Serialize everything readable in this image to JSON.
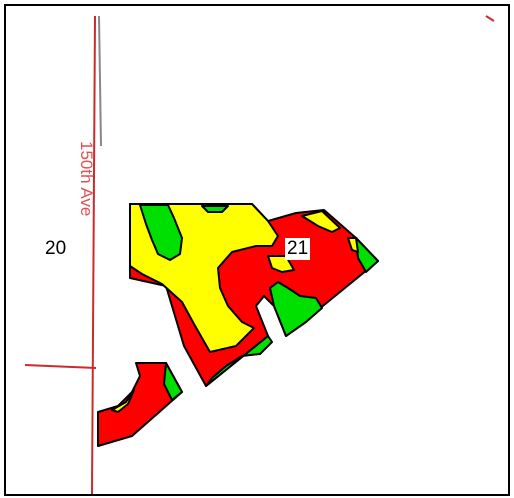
{
  "map": {
    "road_label": "150th Ave",
    "section_labels": {
      "left": "20",
      "right": "21"
    },
    "colors": {
      "road": "#cc2b2b",
      "road_secondary": "#888888",
      "zone_high": "#ff0000",
      "zone_medium": "#ffff00",
      "zone_low": "#00e000",
      "outline": "#000000",
      "frame": "#000000"
    },
    "legend_zones": [
      "red",
      "yellow",
      "green"
    ]
  }
}
